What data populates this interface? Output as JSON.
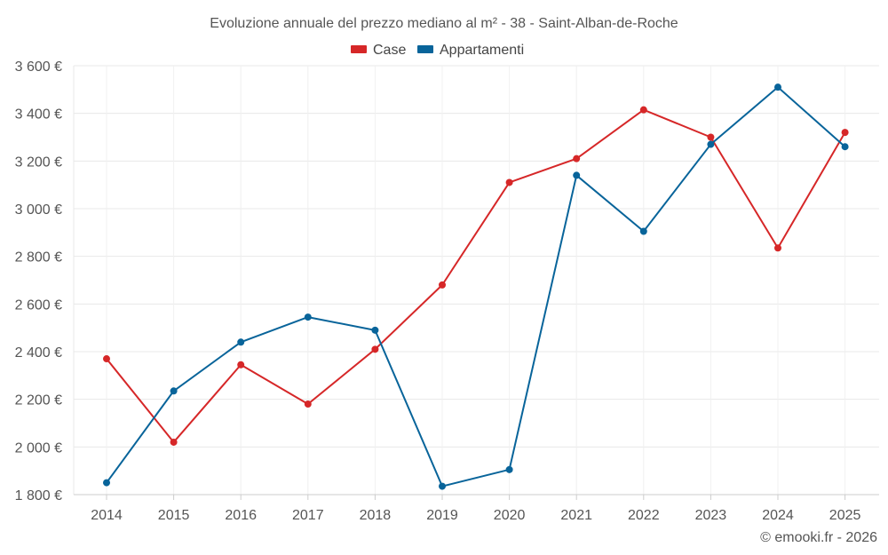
{
  "chart_data": {
    "type": "line",
    "title": "Evoluzione annuale del prezzo mediano al m² - 38 - Saint-Alban-de-Roche",
    "categories": [
      "2014",
      "2015",
      "2016",
      "2017",
      "2018",
      "2019",
      "2020",
      "2021",
      "2022",
      "2023",
      "2024",
      "2025"
    ],
    "series": [
      {
        "name": "Case",
        "color": "#d62728",
        "values": [
          2370,
          2020,
          2345,
          2180,
          2410,
          2680,
          3110,
          3210,
          3415,
          3300,
          2835,
          3320
        ]
      },
      {
        "name": "Appartamenti",
        "color": "#08649a",
        "values": [
          1850,
          2235,
          2440,
          2545,
          2490,
          1835,
          1905,
          3140,
          2905,
          3270,
          3510,
          3260
        ]
      }
    ],
    "ylim": [
      1800,
      3600
    ],
    "yticks": [
      1800,
      2000,
      2200,
      2400,
      2600,
      2800,
      3000,
      3200,
      3400,
      3600
    ],
    "ytick_labels": [
      "1 800 €",
      "2 000 €",
      "2 200 €",
      "2 400 €",
      "2 600 €",
      "2 800 €",
      "3 000 €",
      "3 200 €",
      "3 400 €",
      "3 600 €"
    ],
    "legend_position": "top-center",
    "grid": true,
    "xlabel": "",
    "ylabel": ""
  },
  "credit": "© emooki.fr - 2026"
}
